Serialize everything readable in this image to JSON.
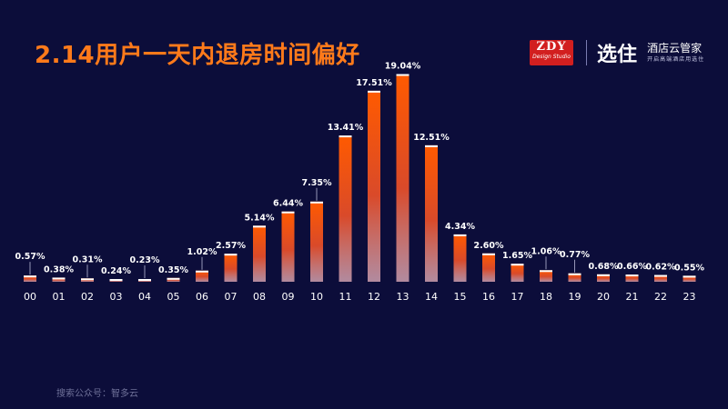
{
  "header": {
    "title": "2.14用户一天内退房时间偏好"
  },
  "logos": {
    "zdy_main": "ZDY",
    "zdy_sub": "Design Studio",
    "brand_mark": "选住",
    "brand_name": "酒店云管家",
    "brand_slogan": "开启高端酒店用选住"
  },
  "footer": {
    "text": "搜索公众号：智多云"
  },
  "colors": {
    "background": "#0c0d3a",
    "bar_top": "#ff5a00",
    "bar_bottom": "#d7a0a4",
    "bar_cap": "#ffffff",
    "label": "#ffffff",
    "title": "#ff7a1a"
  },
  "chart_data": {
    "type": "bar",
    "title": "2.14用户一天内退房时间偏好",
    "xlabel": "",
    "ylabel": "",
    "ylim": [
      0,
      20
    ],
    "grid": false,
    "categories": [
      "00",
      "01",
      "02",
      "03",
      "04",
      "05",
      "06",
      "07",
      "08",
      "09",
      "10",
      "11",
      "12",
      "13",
      "14",
      "15",
      "16",
      "17",
      "18",
      "19",
      "20",
      "21",
      "22",
      "23"
    ],
    "values": [
      0.57,
      0.38,
      0.31,
      0.24,
      0.23,
      0.35,
      1.02,
      2.57,
      5.14,
      6.44,
      7.35,
      13.41,
      17.51,
      19.04,
      12.51,
      4.34,
      2.6,
      1.65,
      1.06,
      0.77,
      0.68,
      0.66,
      0.62,
      0.55
    ],
    "labels": [
      "0.57%",
      "0.38%",
      "0.31%",
      "0.24%",
      "0.23%",
      "0.35%",
      "1.02%",
      "2.57%",
      "5.14%",
      "6.44%",
      "7.35%",
      "13.41%",
      "17.51%",
      "19.04%",
      "12.51%",
      "4.34%",
      "2.60%",
      "1.65%",
      "1.06%",
      "0.77%",
      "0.68%",
      "0.66%",
      "0.62%",
      "0.55%"
    ],
    "leader_lines": [
      "00",
      "02",
      "04",
      "06",
      "10",
      "18",
      "19"
    ]
  }
}
